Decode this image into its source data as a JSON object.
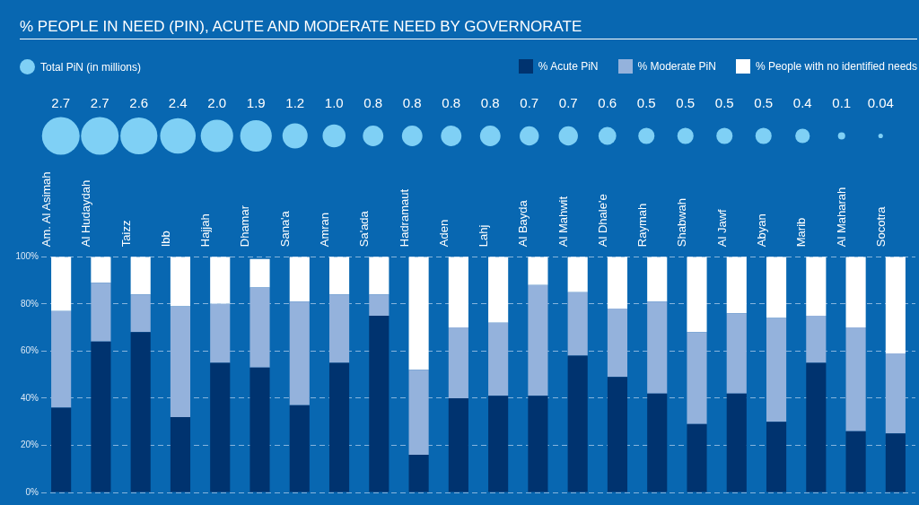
{
  "chart_data": [
    {
      "type": "other",
      "title": "% PEOPLE IN NEED (PIN), ACUTE AND MODERATE NEED BY GOVERNORATE",
      "legend": "top left",
      "categories": [
        null,
        null,
        null,
        null,
        null,
        null,
        null,
        null,
        null,
        null,
        null,
        null,
        null,
        null,
        null,
        null,
        null,
        null,
        null,
        null,
        null,
        null
      ],
      "series": [
        {
          "name": "Total PiN (in millions)",
          "color": "#7fd0f5",
          "values": [
            2.7,
            2.7,
            2.6,
            2.4,
            2.0,
            1.9,
            1.2,
            1.0,
            0.8,
            0.8,
            0.8,
            0.8,
            0.7,
            0.7,
            0.6,
            0.5,
            0.5,
            0.5,
            0.5,
            0.4,
            0.1,
            0.04
          ],
          "value_labels": [
            "2.7",
            "2.7",
            "2.6",
            "2.4",
            "2.0",
            "1.9",
            "1.2",
            "1.0",
            "0.8",
            "0.8",
            "0.8",
            "0.8",
            "0.7",
            "0.7",
            "0.6",
            "0.5",
            "0.5",
            "0.5",
            "0.5",
            "0.4",
            "0.1",
            "0.04"
          ]
        }
      ]
    },
    {
      "type": "bar",
      "stacked": true,
      "legend": "top right",
      "grid": "y",
      "ylim": [
        0,
        100
      ],
      "yticks": [
        {
          "value": 0,
          "label": "0%"
        },
        {
          "value": 20,
          "label": "20%"
        },
        {
          "value": 40,
          "label": "40%"
        },
        {
          "value": 60,
          "label": "60%"
        },
        {
          "value": 80,
          "label": "80%"
        },
        {
          "value": 100,
          "label": "100%"
        }
      ],
      "categories": [
        "Am. Al Asimah",
        "Al Hudaydah",
        "Taizz",
        "Ibb",
        "Hajjah",
        "Dhamar",
        "Sana'a",
        "Amran",
        "Sa'ada",
        "Hadramaut",
        "Aden",
        "Lahj",
        "Al Bayda",
        "Al Mahwit",
        "Al Dhale'e",
        "Raymah",
        "Shabwah",
        "Al Jawf",
        "Abyan",
        "Marib",
        "Al Maharah",
        "Socotra"
      ],
      "series": [
        {
          "name": "% Acute PiN",
          "color": "#00336f",
          "values": [
            36,
            64,
            68,
            32,
            55,
            53,
            37,
            55,
            75,
            16,
            40,
            41,
            41,
            58,
            49,
            42,
            29,
            42,
            30,
            55,
            26,
            25
          ]
        },
        {
          "name": "% Moderate PiN",
          "color": "#94b2dc",
          "values": [
            41,
            25,
            16,
            47,
            25,
            34,
            44,
            29,
            9,
            36,
            30,
            31,
            47,
            27,
            29,
            39,
            39,
            34,
            44,
            20,
            44,
            34
          ]
        },
        {
          "name": "% People with no identified needs",
          "color": "#ffffff",
          "values": [
            23,
            11,
            16,
            21,
            20,
            12,
            19,
            16,
            16,
            48,
            30,
            28,
            12,
            15,
            22,
            19,
            32,
            24,
            26,
            25,
            30,
            41
          ]
        }
      ]
    }
  ]
}
